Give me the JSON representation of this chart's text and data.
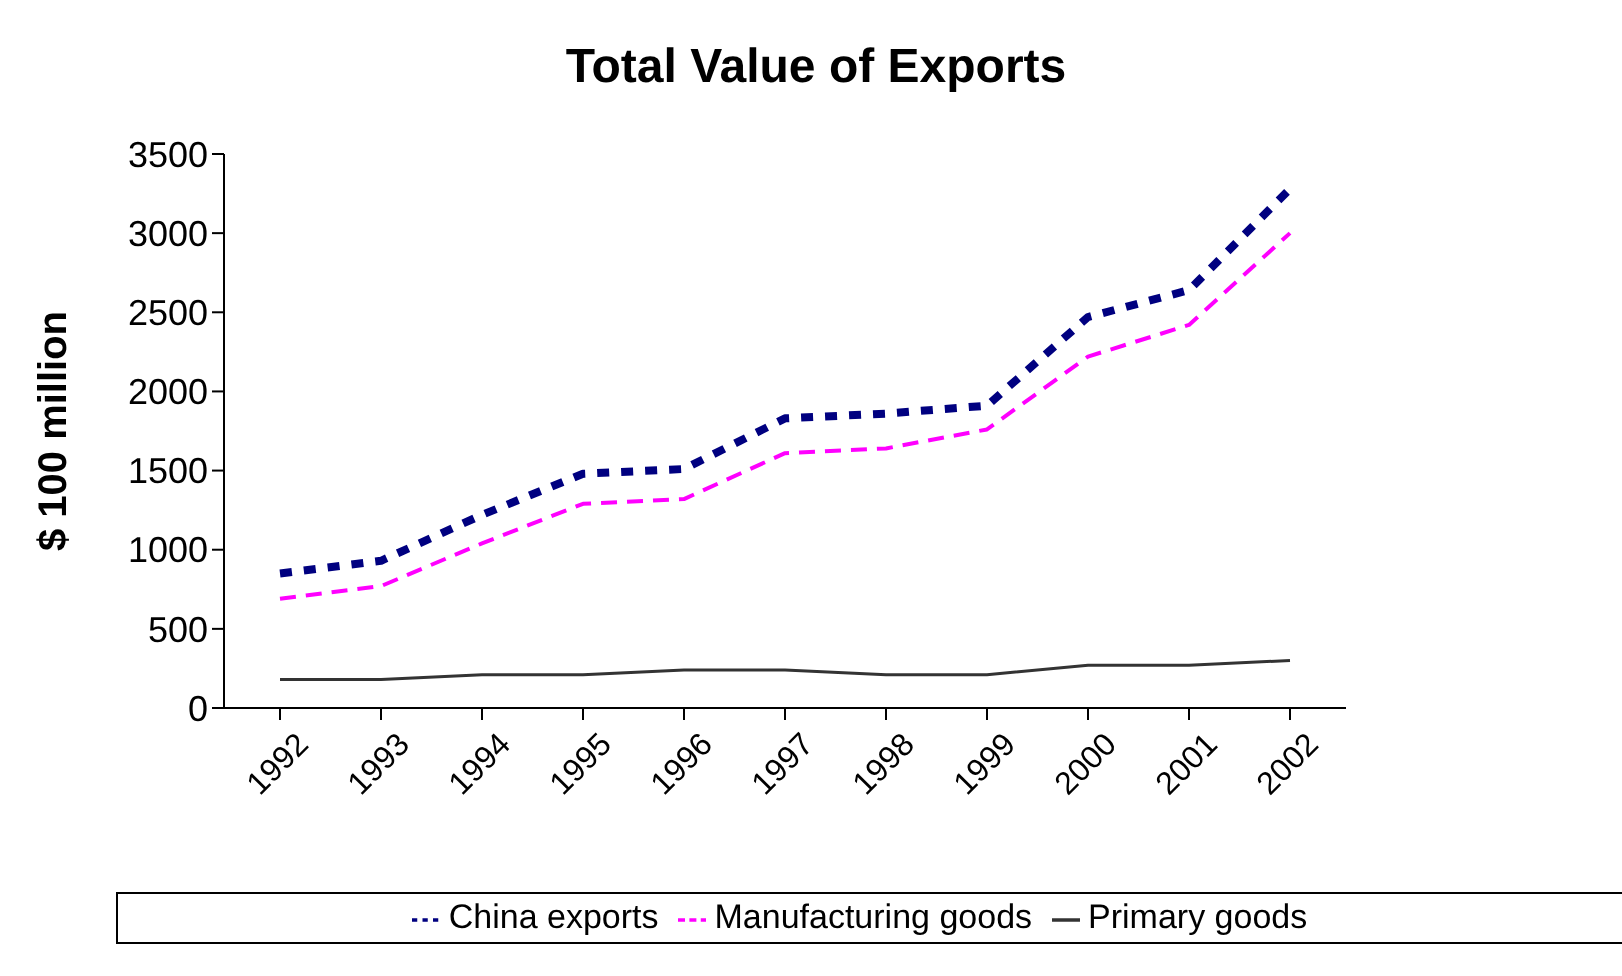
{
  "chart_data": {
    "type": "line",
    "title": "Total Value of Exports",
    "ylabel": "$ 100 million",
    "categories": [
      "1992",
      "1993",
      "1994",
      "1995",
      "1996",
      "1997",
      "1998",
      "1999",
      "2000",
      "2001",
      "2002"
    ],
    "series": [
      {
        "name": "China exports",
        "color": "#000080",
        "line_style": "dashed",
        "values": [
          850,
          930,
          1220,
          1480,
          1510,
          1830,
          1860,
          1910,
          2470,
          2640,
          3280
        ]
      },
      {
        "name": "Manufacturing goods",
        "color": "#ff00ff",
        "line_style": "dashed",
        "values": [
          690,
          770,
          1040,
          1290,
          1320,
          1610,
          1640,
          1760,
          2220,
          2420,
          3000
        ]
      },
      {
        "name": "Primary goods",
        "color": "#333333",
        "line_style": "solid",
        "values": [
          180,
          180,
          210,
          210,
          240,
          240,
          210,
          210,
          270,
          270,
          300
        ]
      }
    ],
    "ylim": [
      0,
      3500
    ],
    "yticks": [
      0,
      500,
      1000,
      1500,
      2000,
      2500,
      3000,
      3500
    ],
    "grid": false,
    "legend": "bottom",
    "marker": "none"
  }
}
